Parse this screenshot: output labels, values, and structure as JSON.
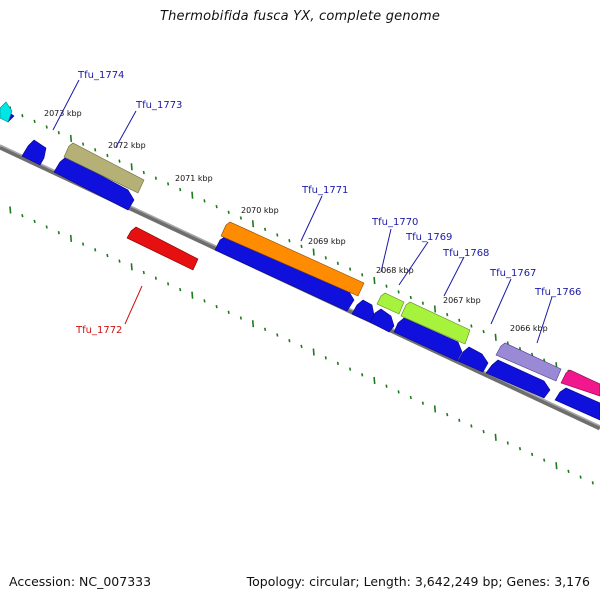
{
  "title": "Thermobifida fusca YX, complete genome",
  "accession_text": "Accession: NC_007333",
  "topology_text": "Topology: circular; Length: 3,642,249 bp; Genes: 3,176",
  "colors": {
    "backbone": "#7a7a7a",
    "tick": "#1e7a1e",
    "cds": "#1010dd",
    "label_blue": "#1a1aa6",
    "label_red": "#cc1010"
  },
  "kbp_labels": [
    "2073 kbp",
    "2072 kbp",
    "2071 kbp",
    "2070 kbp",
    "2069 kbp",
    "2068 kbp",
    "2067 kbp",
    "2066 kbp"
  ],
  "genes": [
    {
      "name": "Tfu_1774",
      "color": "#00e5e5"
    },
    {
      "name": "Tfu_1773",
      "color": "#b5b076"
    },
    {
      "name": "Tfu_1772",
      "color": "#e61010"
    },
    {
      "name": "Tfu_1771",
      "color": "#ff8c00"
    },
    {
      "name": "Tfu_1770",
      "color": "#a6f23c"
    },
    {
      "name": "Tfu_1769",
      "color": "#a6f23c"
    },
    {
      "name": "Tfu_1768",
      "color": "#a6f23c"
    },
    {
      "name": "Tfu_1767",
      "color": "#9a8ad6"
    },
    {
      "name": "Tfu_1766",
      "color": "#f0188c"
    }
  ]
}
